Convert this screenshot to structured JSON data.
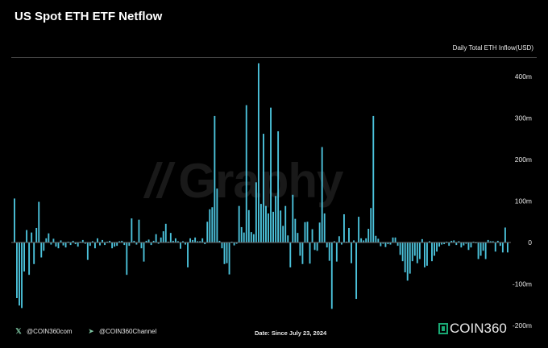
{
  "header": {
    "title": "US Spot ETH ETF Netflow",
    "series_label": "Daily Total ETH Inflow(USD)"
  },
  "watermark": {
    "text": "Graphy"
  },
  "footer": {
    "twitter_handle": "@COIN360com",
    "telegram_handle": "@COIN360Channel",
    "date_note": "Date: Since July 23, 2024",
    "brand": "COIN360"
  },
  "icons": {
    "twitter": "x-logo-icon",
    "telegram": "telegram-icon",
    "brand": "coin360-logo-icon"
  },
  "colors": {
    "bar": "#4cc3dc",
    "background": "#000000",
    "axis_text": "#e6e6e6",
    "zero_line": "#6a6a6a"
  },
  "chart_data": {
    "type": "bar",
    "title": "US Spot ETH ETF Netflow",
    "ylabel": "Daily Total ETH Inflow(USD)",
    "xlabel": "Date: Since July 23, 2024",
    "ylim": [
      -200,
      430
    ],
    "yticks": [
      400,
      300,
      200,
      100,
      0,
      -100,
      -200
    ],
    "ytick_labels": [
      "400m",
      "300m",
      "200m",
      "100m",
      "0",
      "-100m",
      "-200m"
    ],
    "grid": false,
    "values": [
      106,
      -134,
      -152,
      -158,
      -70,
      30,
      -78,
      24,
      -52,
      35,
      98,
      -36,
      -20,
      10,
      22,
      -5,
      9,
      -10,
      -14,
      5,
      -7,
      -12,
      2,
      -6,
      4,
      -4,
      -10,
      2,
      6,
      -3,
      -42,
      -8,
      3,
      -14,
      10,
      -7,
      6,
      -6,
      2,
      4,
      -14,
      -10,
      -8,
      3,
      4,
      -6,
      -78,
      -8,
      58,
      4,
      -5,
      55,
      -14,
      -46,
      4,
      7,
      -6,
      4,
      20,
      -3,
      12,
      27,
      45,
      2,
      23,
      4,
      10,
      3,
      -15,
      3,
      -5,
      -60,
      10,
      6,
      12,
      3,
      3,
      10,
      -4,
      50,
      80,
      85,
      305,
      130,
      4,
      -14,
      -52,
      -50,
      -77,
      2,
      -7,
      -3,
      88,
      37,
      24,
      331,
      78,
      25,
      20,
      145,
      432,
      93,
      262,
      88,
      70,
      325,
      74,
      112,
      268,
      77,
      40,
      88,
      17,
      -60,
      115,
      57,
      23,
      -32,
      -52,
      49,
      50,
      -51,
      32,
      -18,
      -20,
      48,
      230,
      70,
      -12,
      -44,
      -160,
      3,
      -46,
      15,
      -5,
      68,
      2,
      35,
      -50,
      5,
      -136,
      62,
      10,
      5,
      10,
      33,
      83,
      305,
      16,
      9,
      -9,
      -3,
      -11,
      -4,
      -5,
      12,
      12,
      -8,
      -30,
      -45,
      -72,
      -92,
      -75,
      -45,
      -32,
      -50,
      -40,
      8,
      -60,
      -56,
      3,
      -45,
      -32,
      -22,
      -10,
      -5,
      -4,
      2,
      -8,
      4,
      5,
      -6,
      3,
      -12,
      -7,
      -3,
      -18,
      -12,
      2,
      -2,
      -40,
      -32,
      -20,
      -40,
      6,
      3,
      3,
      -22,
      4,
      -8,
      -24,
      36,
      -24
    ]
  }
}
